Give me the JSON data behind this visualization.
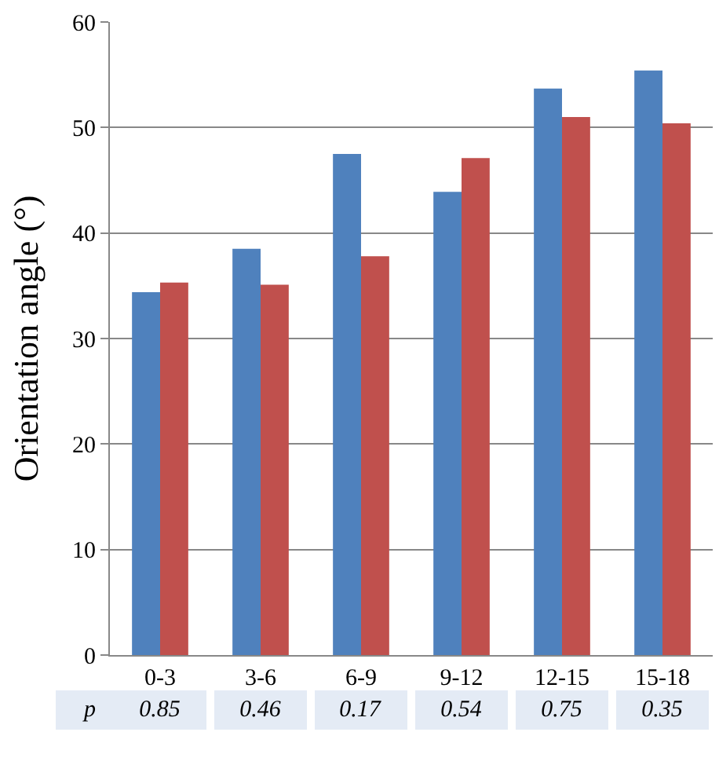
{
  "chart_data": {
    "type": "bar",
    "ylabel": "Orientation angle (°)",
    "categories": [
      "0-3",
      "3-6",
      "6-9",
      "9-12",
      "12-15",
      "15-18"
    ],
    "series": [
      {
        "color": "#4f81bd",
        "values": [
          34.4,
          38.5,
          47.5,
          43.9,
          53.7,
          55.4
        ]
      },
      {
        "color": "#c0504d",
        "values": [
          35.3,
          35.1,
          37.8,
          47.1,
          51.0,
          50.4
        ]
      }
    ],
    "ylim": [
      0,
      60
    ],
    "yticks": [
      0,
      10,
      20,
      30,
      40,
      50,
      60
    ],
    "grid": "y",
    "legend": false,
    "annotations": [
      "p",
      "0.85",
      "0.46",
      "0.17",
      "0.54",
      "0.75",
      "0.35"
    ]
  }
}
